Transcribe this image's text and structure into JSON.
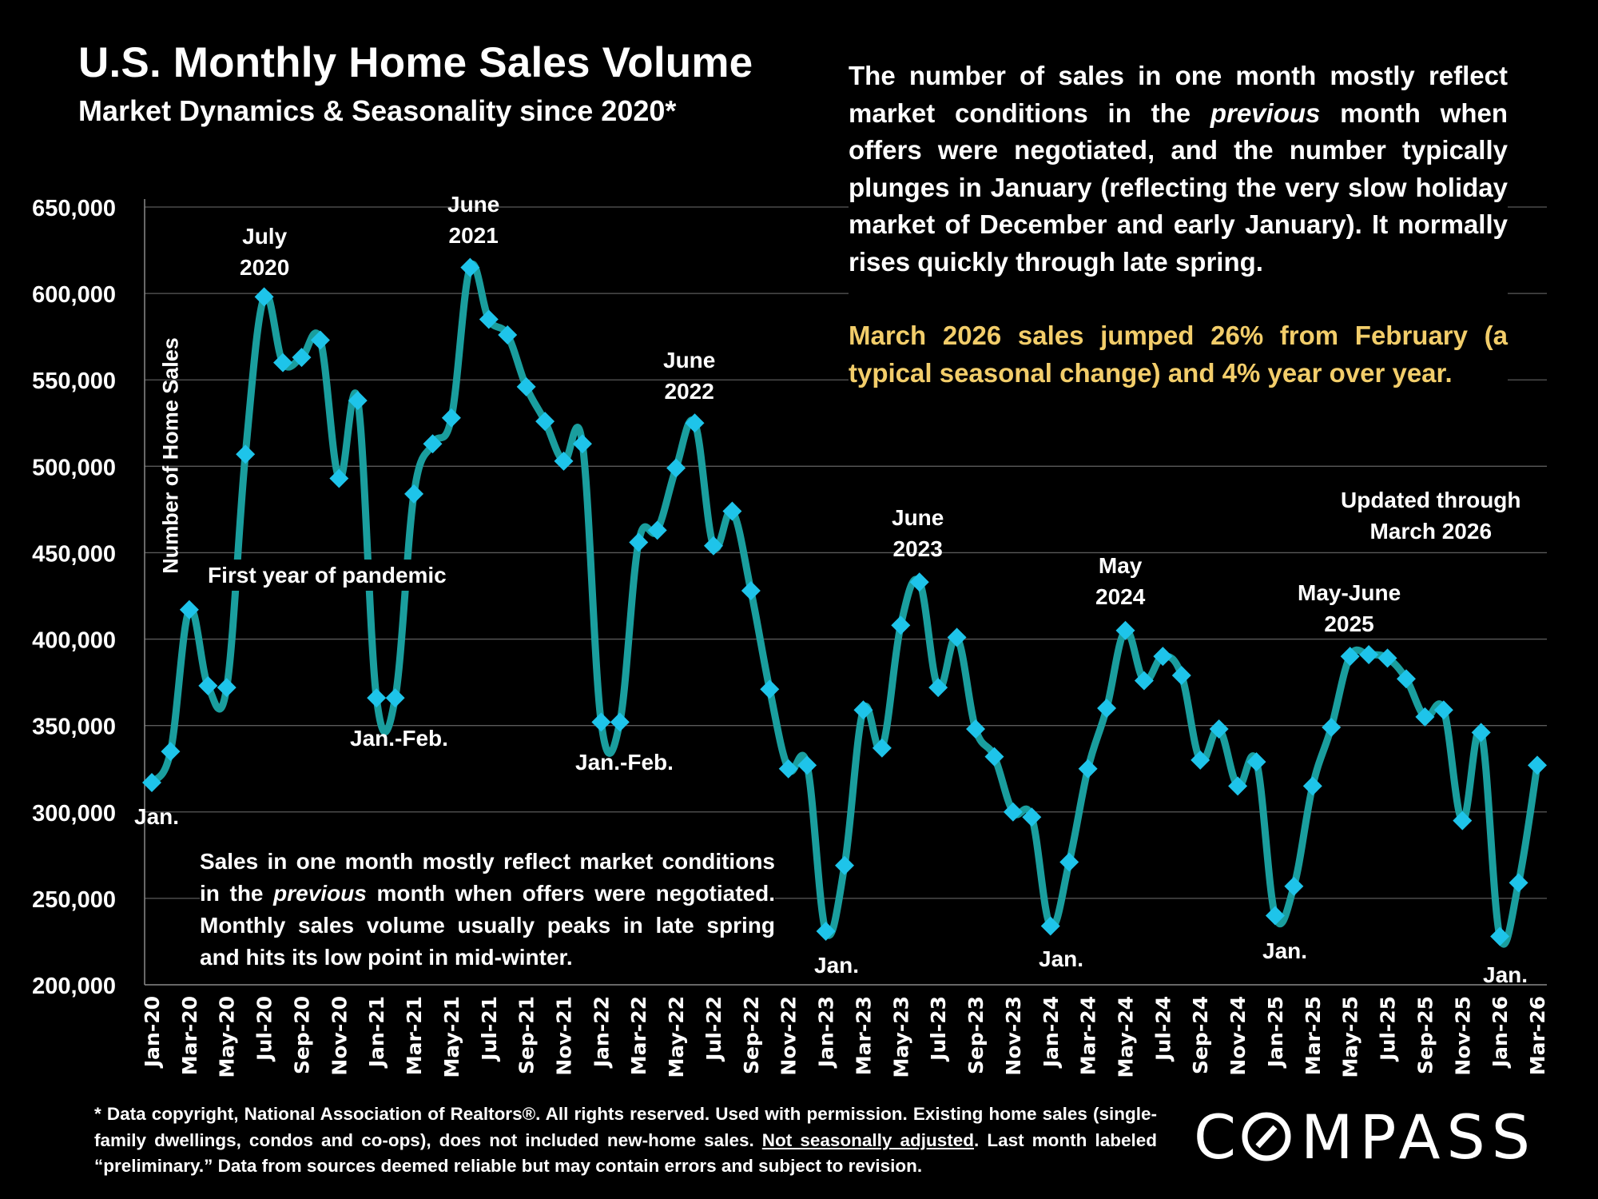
{
  "header": {
    "title": "U.S. Monthly Home Sales Volume",
    "subtitle": "Market Dynamics & Seasonality since 2020*"
  },
  "notes": {
    "main_before_italic": "The number of sales in one month mostly reflect market conditions in the ",
    "main_italic": "previous",
    "main_after_italic": " month when offers were negotiated, and the number typically plunges in January (reflecting the very slow holiday market of December and early January). It normally rises quickly through late spring.",
    "highlight": "March 2026 sales jumped 26% from February (a typical seasonal change) and 4% year over year.",
    "highlight_color": "#f2cd6a",
    "lower_before_italic": "Sales in one month mostly reflect market conditions in the ",
    "lower_italic": "previous",
    "lower_after_italic": " month when offers were negotiated. Monthly sales volume usually peaks in late spring and hits its low point in mid-winter."
  },
  "footnote": {
    "part1": "* Data copyright, National Association of Realtors®. All rights reserved. Used with permission. Existing home sales (single-family dwellings, condos and co-ops), does not included new-home sales. ",
    "underlined": "Not seasonally adjusted",
    "part2": ". Last month labeled “preliminary.” Data from sources deemed reliable but may contain errors and subject to revision."
  },
  "brand": {
    "logo_text": "COMPASS",
    "logo_icon": "compass-o-slash-icon"
  },
  "annotations": {
    "jan_2020": "Jan.",
    "july_2020": [
      "July",
      "2020"
    ],
    "pandemic": "First year of pandemic",
    "janfeb_2021": "Jan.-Feb.",
    "june_2021": [
      "June",
      "2021"
    ],
    "june_2022": [
      "June",
      "2022"
    ],
    "janfeb_2022": "Jan.-Feb.",
    "jan_2023": "Jan.",
    "june_2023": [
      "June",
      "2023"
    ],
    "jan_2024": "Jan.",
    "may_2024": [
      "May",
      "2024"
    ],
    "jan_2025": "Jan.",
    "mayjune_2025": [
      "May-June",
      "2025"
    ],
    "jan_2026": "Jan.",
    "updated": [
      "Updated through",
      "March 2026"
    ]
  },
  "chart_data": {
    "type": "line",
    "title": "U.S. Monthly Home Sales Volume",
    "subtitle": "Market Dynamics & Seasonality since 2020*",
    "xlabel": "",
    "ylabel": "Number of Home Sales",
    "ylim": [
      200000,
      650000
    ],
    "yticks": [
      200000,
      250000,
      300000,
      350000,
      400000,
      450000,
      500000,
      550000,
      600000,
      650000
    ],
    "ytick_labels": [
      "200,000",
      "250,000",
      "300,000",
      "350,000",
      "400,000",
      "450,000",
      "500,000",
      "550,000",
      "600,000",
      "650,000"
    ],
    "grid": true,
    "legend": "none",
    "line_color": "#1a9e9e",
    "marker_color": "#1ec4ea",
    "marker": "diamond",
    "x": [
      "Jan-20",
      "Feb-20",
      "Mar-20",
      "Apr-20",
      "May-20",
      "Jun-20",
      "Jul-20",
      "Aug-20",
      "Sep-20",
      "Oct-20",
      "Nov-20",
      "Dec-20",
      "Jan-21",
      "Feb-21",
      "Mar-21",
      "Apr-21",
      "May-21",
      "Jun-21",
      "Jul-21",
      "Aug-21",
      "Sep-21",
      "Oct-21",
      "Nov-21",
      "Dec-21",
      "Jan-22",
      "Feb-22",
      "Mar-22",
      "Apr-22",
      "May-22",
      "Jun-22",
      "Jul-22",
      "Aug-22",
      "Sep-22",
      "Oct-22",
      "Nov-22",
      "Dec-22",
      "Jan-23",
      "Feb-23",
      "Mar-23",
      "Apr-23",
      "May-23",
      "Jun-23",
      "Jul-23",
      "Aug-23",
      "Sep-23",
      "Oct-23",
      "Nov-23",
      "Dec-23",
      "Jan-24",
      "Feb-24",
      "Mar-24",
      "Apr-24",
      "May-24",
      "Jun-24",
      "Jul-24",
      "Aug-24",
      "Sep-24",
      "Oct-24",
      "Nov-24",
      "Dec-24",
      "Jan-25",
      "Feb-25",
      "Mar-25",
      "Apr-25",
      "May-25",
      "Jun-25",
      "Jul-25",
      "Aug-25",
      "Sep-25",
      "Oct-25",
      "Nov-25",
      "Dec-25",
      "Jan-26",
      "Feb-26",
      "Mar-26"
    ],
    "xtick_labels": [
      "Jan-20",
      "Mar-20",
      "May-20",
      "Jul-20",
      "Sep-20",
      "Nov-20",
      "Jan-21",
      "Mar-21",
      "May-21",
      "Jul-21",
      "Sep-21",
      "Nov-21",
      "Jan-22",
      "Mar-22",
      "May-22",
      "Jul-22",
      "Sep-22",
      "Nov-22",
      "Jan-23",
      "Mar-23",
      "May-23",
      "Jul-23",
      "Sep-23",
      "Nov-23",
      "Jan-24",
      "Mar-24",
      "May-24",
      "Jul-24",
      "Sep-24",
      "Nov-24",
      "Jan-25",
      "Mar-25",
      "May-25",
      "Jul-25",
      "Sep-25",
      "Nov-25",
      "Jan-26",
      "Mar-26"
    ],
    "series": [
      {
        "name": "Monthly Home Sales",
        "values": [
          317000,
          335000,
          417000,
          373000,
          372000,
          507000,
          598000,
          560000,
          563000,
          573000,
          493000,
          538000,
          366000,
          366000,
          484000,
          513000,
          528000,
          615000,
          585000,
          576000,
          546000,
          526000,
          503000,
          513000,
          352000,
          352000,
          456000,
          463000,
          499000,
          525000,
          454000,
          474000,
          428000,
          371000,
          325000,
          327000,
          231000,
          269000,
          359000,
          337000,
          408000,
          433000,
          372000,
          401000,
          348000,
          332000,
          300000,
          297000,
          234000,
          271000,
          325000,
          360000,
          405000,
          376000,
          390000,
          379000,
          330000,
          348000,
          315000,
          329000,
          240000,
          257000,
          315000,
          349000,
          390000,
          391000,
          389000,
          377000,
          355000,
          359000,
          295000,
          346000,
          228000,
          259000,
          327000
        ]
      }
    ]
  }
}
